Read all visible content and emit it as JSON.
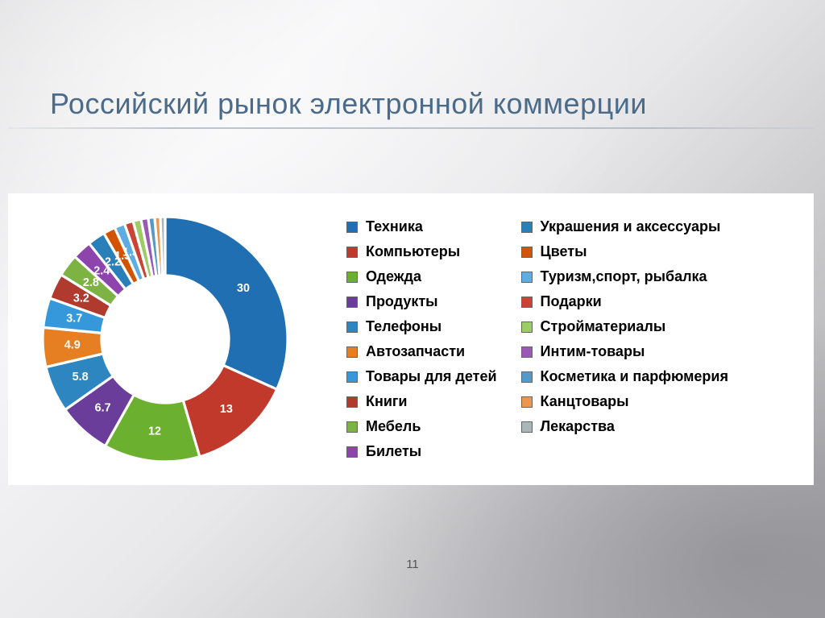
{
  "title": "Российский рынок электронной коммерции",
  "page_number": "11",
  "chart": {
    "type": "donut",
    "inner_radius_ratio": 0.52,
    "background_color": "#ffffff",
    "slice_border_color": "#ffffff",
    "slice_border_width": 2,
    "label_fontsize": 9,
    "label_color": "#ffffff",
    "legend_fontsize": 18,
    "legend_fontweight": 700,
    "legend_text_color": "#000000",
    "slices": [
      {
        "label": "Техника",
        "value": 30,
        "color": "#1f6fb2",
        "show_value": true
      },
      {
        "label": "Компьютеры",
        "value": 13,
        "color": "#c0392b",
        "show_value": true
      },
      {
        "label": "Одежда",
        "value": 12,
        "color": "#6bb12f",
        "show_value": true
      },
      {
        "label": "Продукты",
        "value": 6.7,
        "color": "#6a3d9a",
        "show_value": true
      },
      {
        "label": "Телефоны",
        "value": 5.8,
        "color": "#2e86c1",
        "show_value": true
      },
      {
        "label": "Автозапчасти",
        "value": 4.9,
        "color": "#e67e22",
        "show_value": true
      },
      {
        "label": "Товары для детей",
        "value": 3.7,
        "color": "#3498db",
        "show_value": true
      },
      {
        "label": "Книги",
        "value": 3.2,
        "color": "#b03a2e",
        "show_value": true
      },
      {
        "label": "Мебель",
        "value": 2.8,
        "color": "#7cb342",
        "show_value": true
      },
      {
        "label": "Билеты",
        "value": 2.4,
        "color": "#8e44ad",
        "show_value": true
      },
      {
        "label": "Украшения и аксессуары",
        "value": 2.2,
        "color": "#2980b9",
        "show_value": true
      },
      {
        "label": "Цветы",
        "value": 1.5,
        "color": "#d35400",
        "show_value": true
      },
      {
        "label": "Туризм,спорт, рыбалка",
        "value": 1.3,
        "color": "#5dade2",
        "show_value": true
      },
      {
        "label": "Подарки",
        "value": 1.1,
        "color": "#cb4335",
        "show_value": false
      },
      {
        "label": "Стройматериалы",
        "value": 1.0,
        "color": "#9ccc65",
        "show_value": false
      },
      {
        "label": "Интим-товары",
        "value": 0.9,
        "color": "#9b59b6",
        "show_value": false
      },
      {
        "label": "Косметика и парфюмерия",
        "value": 0.8,
        "color": "#5499c7",
        "show_value": false
      },
      {
        "label": "Канцтовары",
        "value": 0.7,
        "color": "#eb984e",
        "show_value": false
      },
      {
        "label": "Лекарства",
        "value": 0.6,
        "color": "#aab7b8",
        "show_value": false
      }
    ],
    "legend_columns": [
      [
        "Техника",
        "Компьютеры",
        "Одежда",
        "Продукты",
        "Телефоны",
        "Автозапчасти",
        "Товары для детей",
        "Книги",
        "Мебель",
        "Билеты"
      ],
      [
        "Украшения и аксессуары",
        "Цветы",
        "Туризм,спорт, рыбалка",
        "Подарки",
        "Стройматериалы",
        "Интим-товары",
        "Косметика и парфюмерия",
        "Канцтовары",
        "Лекарства"
      ]
    ]
  }
}
